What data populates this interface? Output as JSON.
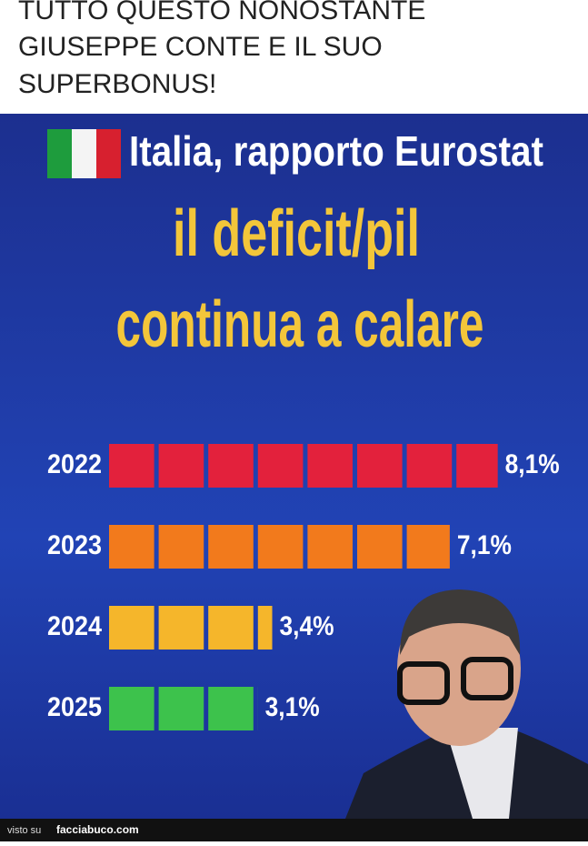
{
  "header": {
    "lines": [
      "TUTTO QUESTO NONOSTANTE",
      "GIUSEPPE CONTE E IL SUO",
      "SUPERBONUS!"
    ]
  },
  "chart_data": {
    "type": "bar",
    "title": "Italia, rapporto Eurostat",
    "subtitle": [
      "il deficit/pil",
      "continua a calare"
    ],
    "categories": [
      "2022",
      "2023",
      "2024",
      "2025"
    ],
    "values": [
      8.1,
      7.1,
      3.4,
      3.1
    ],
    "value_labels": [
      "8,1%",
      "7,1%",
      "3,4%",
      "3,1%"
    ],
    "colors": [
      "#e3213c",
      "#f27a1c",
      "#f5b62b",
      "#3dc24c"
    ]
  },
  "footer": {
    "prefix": "visto su",
    "site": "facciabuco.com"
  }
}
